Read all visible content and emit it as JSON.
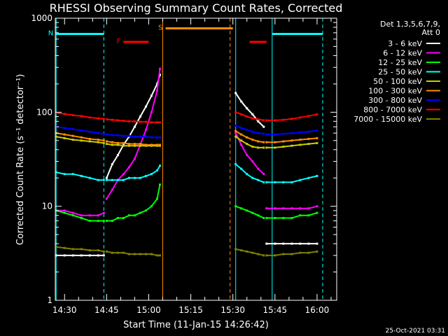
{
  "chart_data": {
    "type": "line",
    "title": "RHESSI Observing Summary Count Rates, Corrected",
    "xlabel": "Start Time (11-Jan-15 14:26:42)",
    "ylabel": "Corrected Count Rate (s⁻¹ detector⁻¹)",
    "yscale": "log",
    "ylim": [
      1,
      1000
    ],
    "xlim": [
      "14:26:42",
      "16:07:00"
    ],
    "x_ticks": [
      "14:30",
      "14:45",
      "15:00",
      "15:15",
      "15:30",
      "15:45",
      "16:00"
    ],
    "y_ticks": [
      "1",
      "10",
      "100",
      "1000"
    ],
    "legend": {
      "placement": "right",
      "header": [
        "Det 1,3,5,6,7,9,",
        "Att 0"
      ]
    },
    "date_stamp": "25-Oct-2021 03:31",
    "series": [
      {
        "name": "3 - 6 keV",
        "color": "#ffffff",
        "segments": [
          {
            "x": [
              "14:27",
              "14:30",
              "14:33",
              "14:36",
              "14:39",
              "14:42",
              "14:44"
            ],
            "y": [
              3,
              3,
              3,
              3,
              3,
              3,
              3
            ]
          },
          {
            "x": [
              "14:45",
              "14:47",
              "14:49",
              "14:51",
              "14:53",
              "14:55",
              "14:57",
              "14:59",
              "15:01",
              "15:03",
              "15:04"
            ],
            "y": [
              20,
              28,
              35,
              45,
              55,
              70,
              90,
              115,
              150,
              200,
              250
            ]
          },
          {
            "x": [
              "15:31",
              "15:33",
              "15:35",
              "15:37",
              "15:39",
              "15:41"
            ],
            "y": [
              160,
              130,
              110,
              95,
              80,
              70
            ]
          },
          {
            "x": [
              "15:42",
              "15:45",
              "15:48",
              "15:51",
              "15:54",
              "15:57",
              "16:00"
            ],
            "y": [
              4,
              4,
              4,
              4,
              4,
              4,
              4
            ]
          }
        ]
      },
      {
        "name": "6 - 12 keV",
        "color": "#ff00ff",
        "segments": [
          {
            "x": [
              "14:27",
              "14:30",
              "14:33",
              "14:36",
              "14:39",
              "14:42",
              "14:44"
            ],
            "y": [
              9,
              9,
              8.5,
              8,
              8,
              8,
              8.5
            ]
          },
          {
            "x": [
              "14:45",
              "14:47",
              "14:49",
              "14:51",
              "14:53",
              "14:55",
              "14:57",
              "14:59",
              "15:01",
              "15:03",
              "15:04"
            ],
            "y": [
              12,
              15,
              19,
              22,
              26,
              32,
              45,
              65,
              100,
              170,
              290
            ]
          },
          {
            "x": [
              "15:31",
              "15:33",
              "15:35",
              "15:37",
              "15:39",
              "15:41"
            ],
            "y": [
              60,
              45,
              35,
              30,
              25,
              22
            ]
          },
          {
            "x": [
              "15:42",
              "15:45",
              "15:48",
              "15:51",
              "15:54",
              "15:57",
              "16:00"
            ],
            "y": [
              9.5,
              9.5,
              9.5,
              9.5,
              9.5,
              9.5,
              10
            ]
          }
        ]
      },
      {
        "name": "12 - 25 keV",
        "color": "#00ff00",
        "segments": [
          {
            "x": [
              "14:27",
              "14:30",
              "14:33",
              "14:36",
              "14:39",
              "14:42",
              "14:44"
            ],
            "y": [
              9,
              8.5,
              8,
              7.5,
              7,
              7,
              7
            ]
          },
          {
            "x": [
              "14:45",
              "14:47",
              "14:49",
              "14:51",
              "14:53",
              "14:55",
              "14:57",
              "14:59",
              "15:01",
              "15:03",
              "15:04"
            ],
            "y": [
              7,
              7,
              7.5,
              7.5,
              8,
              8,
              8.5,
              9,
              10,
              12,
              17
            ]
          },
          {
            "x": [
              "15:31",
              "15:33",
              "15:35",
              "15:37",
              "15:39",
              "15:41"
            ],
            "y": [
              10,
              9.5,
              9,
              8.5,
              8,
              7.5
            ]
          },
          {
            "x": [
              "15:42",
              "15:45",
              "15:48",
              "15:51",
              "15:54",
              "15:57",
              "16:00"
            ],
            "y": [
              7.5,
              7.5,
              7.5,
              7.5,
              8,
              8,
              8.5
            ]
          }
        ]
      },
      {
        "name": "25 - 50 keV",
        "color": "#00ffff",
        "segments": [
          {
            "x": [
              "14:27",
              "14:30",
              "14:33",
              "14:36",
              "14:39",
              "14:42",
              "14:44"
            ],
            "y": [
              23,
              22,
              22,
              21,
              20,
              19,
              19
            ]
          },
          {
            "x": [
              "14:45",
              "14:47",
              "14:49",
              "14:51",
              "14:53",
              "14:55",
              "14:57",
              "14:59",
              "15:01",
              "15:03",
              "15:04"
            ],
            "y": [
              19,
              19,
              19,
              19,
              20,
              20,
              20,
              21,
              22,
              24,
              27
            ]
          },
          {
            "x": [
              "15:31",
              "15:33",
              "15:35",
              "15:37",
              "15:39",
              "15:41"
            ],
            "y": [
              28,
              25,
              22,
              20,
              19,
              18
            ]
          },
          {
            "x": [
              "15:42",
              "15:45",
              "15:48",
              "15:51",
              "15:54",
              "15:57",
              "16:00"
            ],
            "y": [
              18,
              18,
              18,
              18,
              19,
              20,
              21
            ]
          }
        ]
      },
      {
        "name": "50 - 100 keV",
        "color": "#cccc00",
        "segments": [
          {
            "x": [
              "14:27",
              "14:30",
              "14:33",
              "14:36",
              "14:39",
              "14:42",
              "14:44"
            ],
            "y": [
              55,
              53,
              51,
              50,
              49,
              48,
              47
            ]
          },
          {
            "x": [
              "14:45",
              "14:47",
              "14:49",
              "14:51",
              "14:53",
              "14:55",
              "14:57",
              "14:59",
              "15:01",
              "15:03",
              "15:04"
            ],
            "y": [
              46,
              45,
              45,
              44,
              44,
              44,
              44,
              44,
              44,
              44,
              44
            ]
          },
          {
            "x": [
              "15:31",
              "15:33",
              "15:35",
              "15:37",
              "15:39",
              "15:41"
            ],
            "y": [
              55,
              50,
              46,
              43,
              42,
              42
            ]
          },
          {
            "x": [
              "15:42",
              "15:45",
              "15:48",
              "15:51",
              "15:54",
              "15:57",
              "16:00"
            ],
            "y": [
              42,
              42,
              43,
              44,
              45,
              46,
              47
            ]
          }
        ]
      },
      {
        "name": "100 - 300 keV",
        "color": "#ff8c00",
        "segments": [
          {
            "x": [
              "14:27",
              "14:30",
              "14:33",
              "14:36",
              "14:39",
              "14:42",
              "14:44"
            ],
            "y": [
              60,
              58,
              56,
              54,
              52,
              51,
              50
            ]
          },
          {
            "x": [
              "14:45",
              "14:47",
              "14:49",
              "14:51",
              "14:53",
              "14:55",
              "14:57",
              "14:59",
              "15:01",
              "15:03",
              "15:04"
            ],
            "y": [
              49,
              48,
              47,
              47,
              46,
              46,
              46,
              45,
              45,
              45,
              45
            ]
          },
          {
            "x": [
              "15:31",
              "15:33",
              "15:35",
              "15:37",
              "15:39",
              "15:41"
            ],
            "y": [
              63,
              58,
              54,
              51,
              49,
              48
            ]
          },
          {
            "x": [
              "15:42",
              "15:45",
              "15:48",
              "15:51",
              "15:54",
              "15:57",
              "16:00"
            ],
            "y": [
              48,
              48,
              49,
              50,
              51,
              52,
              53
            ]
          }
        ]
      },
      {
        "name": "300 - 800 keV",
        "color": "#0000ff",
        "segments": [
          {
            "x": [
              "14:27",
              "14:30",
              "14:33",
              "14:36",
              "14:39",
              "14:42",
              "14:44"
            ],
            "y": [
              70,
              68,
              66,
              64,
              62,
              60,
              59
            ]
          },
          {
            "x": [
              "14:45",
              "14:47",
              "14:49",
              "14:51",
              "14:53",
              "14:55",
              "14:57",
              "14:59",
              "15:01",
              "15:03",
              "15:04"
            ],
            "y": [
              58,
              57,
              57,
              56,
              56,
              55,
              55,
              55,
              54,
              54,
              54
            ]
          },
          {
            "x": [
              "15:31",
              "15:33",
              "15:35",
              "15:37",
              "15:39",
              "15:41"
            ],
            "y": [
              72,
              68,
              65,
              62,
              60,
              59
            ]
          },
          {
            "x": [
              "15:42",
              "15:45",
              "15:48",
              "15:51",
              "15:54",
              "15:57",
              "16:00"
            ],
            "y": [
              58,
              58,
              59,
              60,
              61,
              62,
              64
            ]
          }
        ]
      },
      {
        "name": "800 - 7000 keV",
        "color": "#ff0000",
        "segments": [
          {
            "x": [
              "14:27",
              "14:30",
              "14:33",
              "14:36",
              "14:39",
              "14:42",
              "14:44"
            ],
            "y": [
              98,
              96,
              93,
              91,
              88,
              86,
              85
            ]
          },
          {
            "x": [
              "14:45",
              "14:47",
              "14:49",
              "14:51",
              "14:53",
              "14:55",
              "14:57",
              "14:59",
              "15:01",
              "15:03",
              "15:04"
            ],
            "y": [
              84,
              83,
              82,
              81,
              80,
              80,
              79,
              79,
              78,
              78,
              78
            ]
          },
          {
            "x": [
              "15:31",
              "15:33",
              "15:35",
              "15:37",
              "15:39",
              "15:41"
            ],
            "y": [
              100,
              95,
              90,
              86,
              84,
              82
            ]
          },
          {
            "x": [
              "15:42",
              "15:45",
              "15:48",
              "15:51",
              "15:54",
              "15:57",
              "16:00"
            ],
            "y": [
              82,
              82,
              83,
              85,
              88,
              91,
              95
            ]
          }
        ]
      },
      {
        "name": "7000 - 15000 keV",
        "color": "#808000",
        "segments": [
          {
            "x": [
              "14:27",
              "14:30",
              "14:33",
              "14:36",
              "14:39",
              "14:42",
              "14:44"
            ],
            "y": [
              3.7,
              3.6,
              3.5,
              3.5,
              3.4,
              3.4,
              3.3
            ]
          },
          {
            "x": [
              "14:45",
              "14:47",
              "14:49",
              "14:51",
              "14:53",
              "14:55",
              "14:57",
              "14:59",
              "15:01",
              "15:03",
              "15:04"
            ],
            "y": [
              3.3,
              3.2,
              3.2,
              3.2,
              3.1,
              3.1,
              3.1,
              3.1,
              3.1,
              3.0,
              3.0
            ]
          },
          {
            "x": [
              "15:31",
              "15:33",
              "15:35",
              "15:37",
              "15:39",
              "15:41"
            ],
            "y": [
              3.5,
              3.4,
              3.3,
              3.2,
              3.1,
              3.0
            ]
          },
          {
            "x": [
              "15:42",
              "15:45",
              "15:48",
              "15:51",
              "15:54",
              "15:57",
              "16:00"
            ],
            "y": [
              3.0,
              3.0,
              3.1,
              3.1,
              3.2,
              3.2,
              3.3
            ]
          }
        ]
      }
    ],
    "markers": [
      {
        "label": "N",
        "color": "#00ffff",
        "style": "bar",
        "x": [
          "14:27",
          "14:44"
        ],
        "y": 680
      },
      {
        "label": "",
        "color": "#00ffff",
        "style": "bar",
        "x": [
          "15:44",
          "16:02"
        ],
        "y": 680
      },
      {
        "label": "S",
        "color": "#ff8c00",
        "style": "bar",
        "x": [
          "15:06",
          "15:30"
        ],
        "y": 780
      },
      {
        "label": "F",
        "color": "#ff0000",
        "style": "bar",
        "x": [
          "14:51",
          "15:00"
        ],
        "y": 560
      },
      {
        "label": "",
        "color": "#ff0000",
        "style": "bar",
        "x": [
          "15:36",
          "15:42"
        ],
        "y": 560
      }
    ],
    "vlines": [
      {
        "x": "14:27",
        "color": "#00ffff",
        "dashed": false
      },
      {
        "x": "14:44",
        "color": "#00ffff",
        "dashed": true
      },
      {
        "x": "15:05",
        "color": "#ff8c00",
        "dashed": false
      },
      {
        "x": "15:29",
        "color": "#ff8c00",
        "dashed": true
      },
      {
        "x": "15:31",
        "color": "#00ffff",
        "dashed": false
      },
      {
        "x": "15:44",
        "color": "#00ffff",
        "dashed": false
      },
      {
        "x": "16:02",
        "color": "#00ffff",
        "dashed": true
      }
    ]
  }
}
